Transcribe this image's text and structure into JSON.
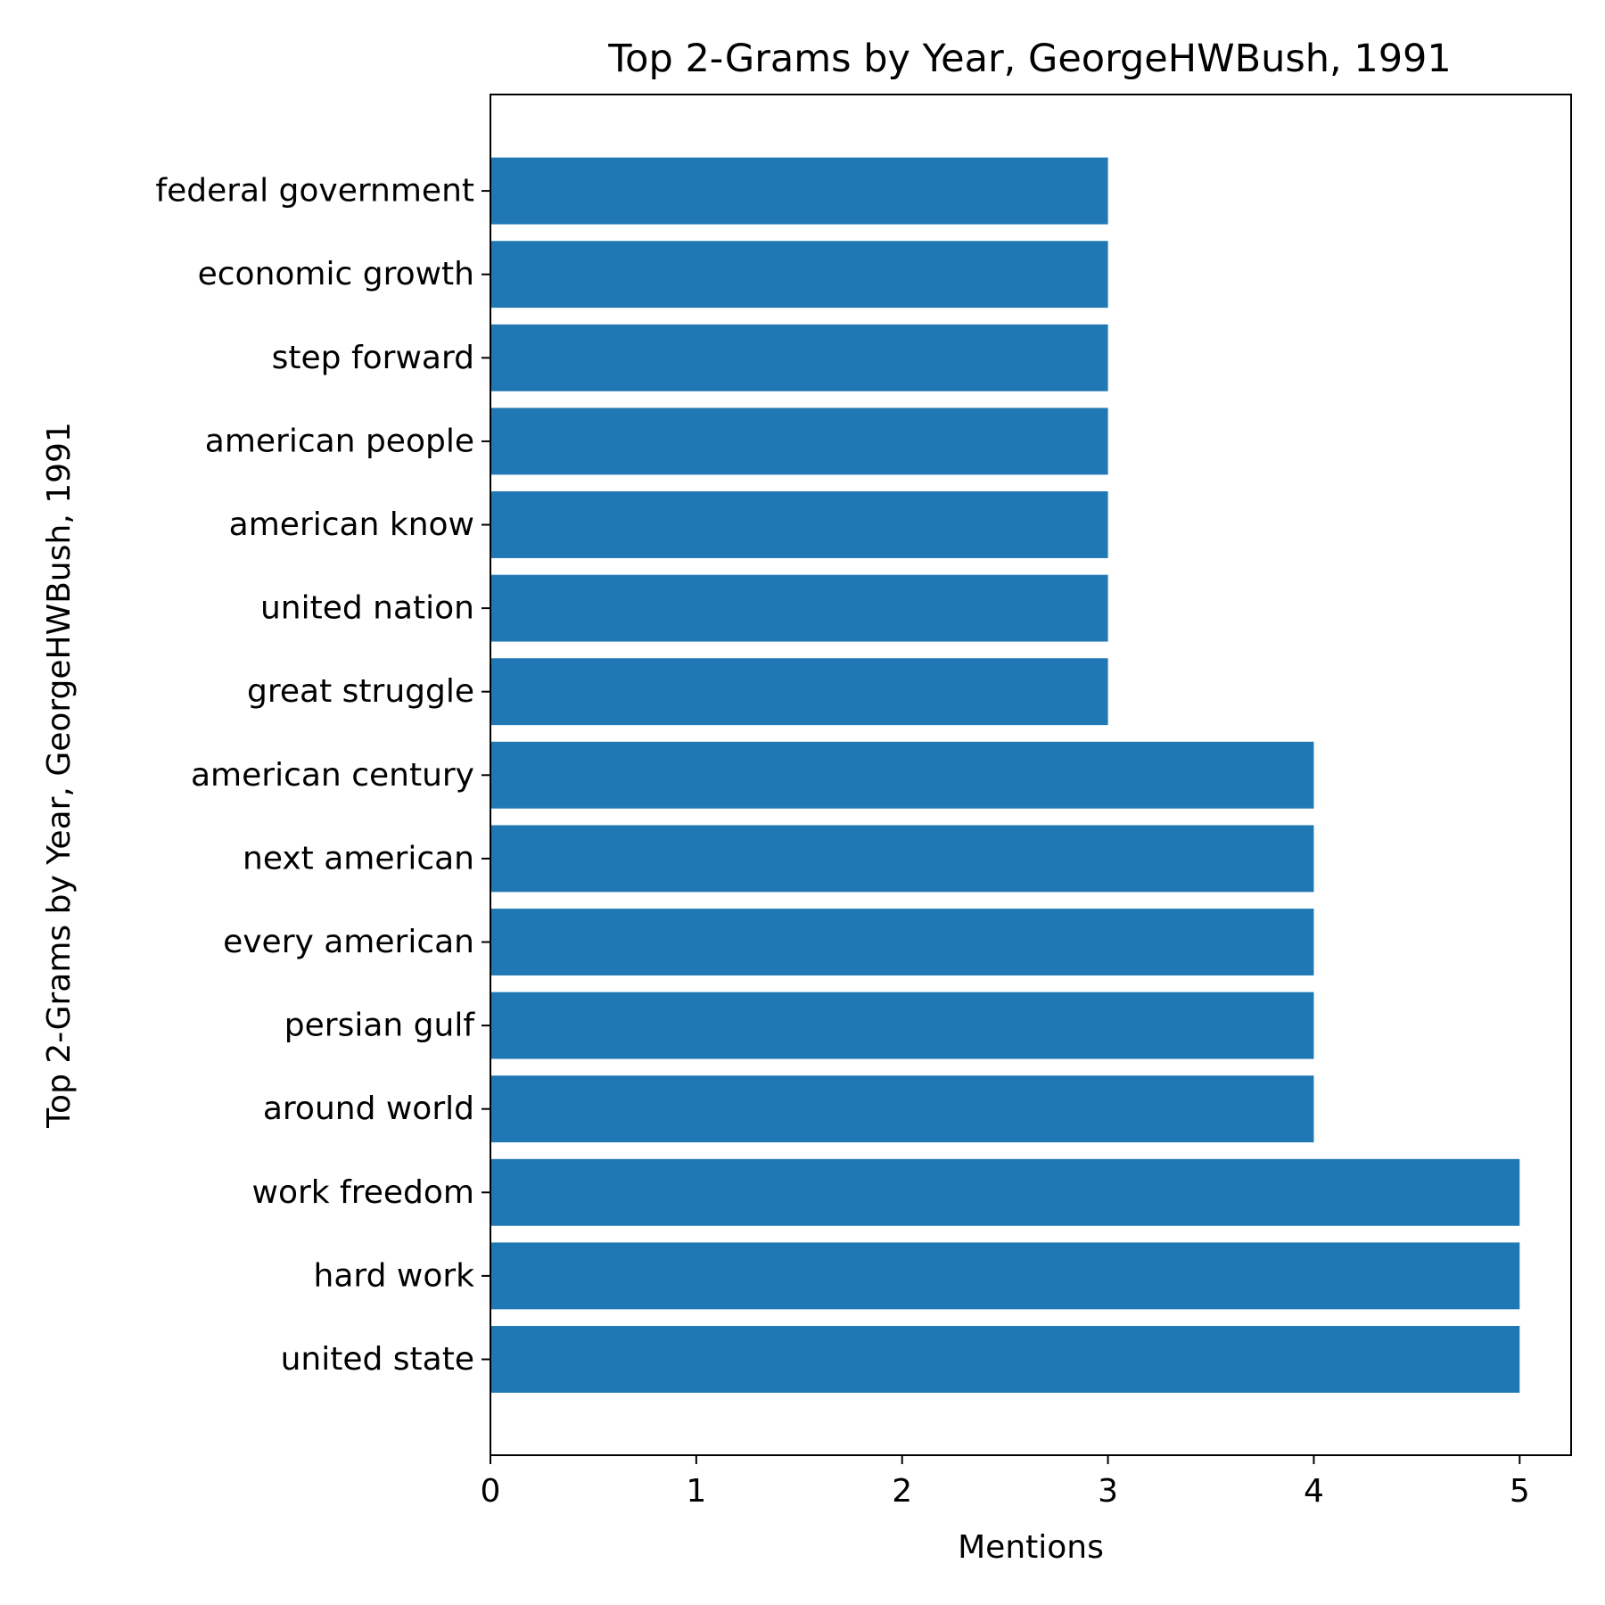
{
  "chart_data": {
    "type": "bar",
    "orientation": "horizontal",
    "title": "Top 2-Grams by Year, GeorgeHWBush, 1991",
    "xlabel": "Mentions",
    "ylabel": "Top 2-Grams by Year, GeorgeHWBush, 1991",
    "categories": [
      "united state",
      "hard work",
      "work freedom",
      "around world",
      "persian gulf",
      "every american",
      "next american",
      "american century",
      "great struggle",
      "united nation",
      "american know",
      "american people",
      "step forward",
      "economic growth",
      "federal government"
    ],
    "values": [
      5,
      5,
      5,
      4,
      4,
      4,
      4,
      4,
      3,
      3,
      3,
      3,
      3,
      3,
      3
    ],
    "xlim": [
      0,
      5.25
    ],
    "xticks": [
      0,
      1,
      2,
      3,
      4,
      5
    ],
    "bar_color": "#1f77b4",
    "grid": false,
    "legend": "none"
  }
}
